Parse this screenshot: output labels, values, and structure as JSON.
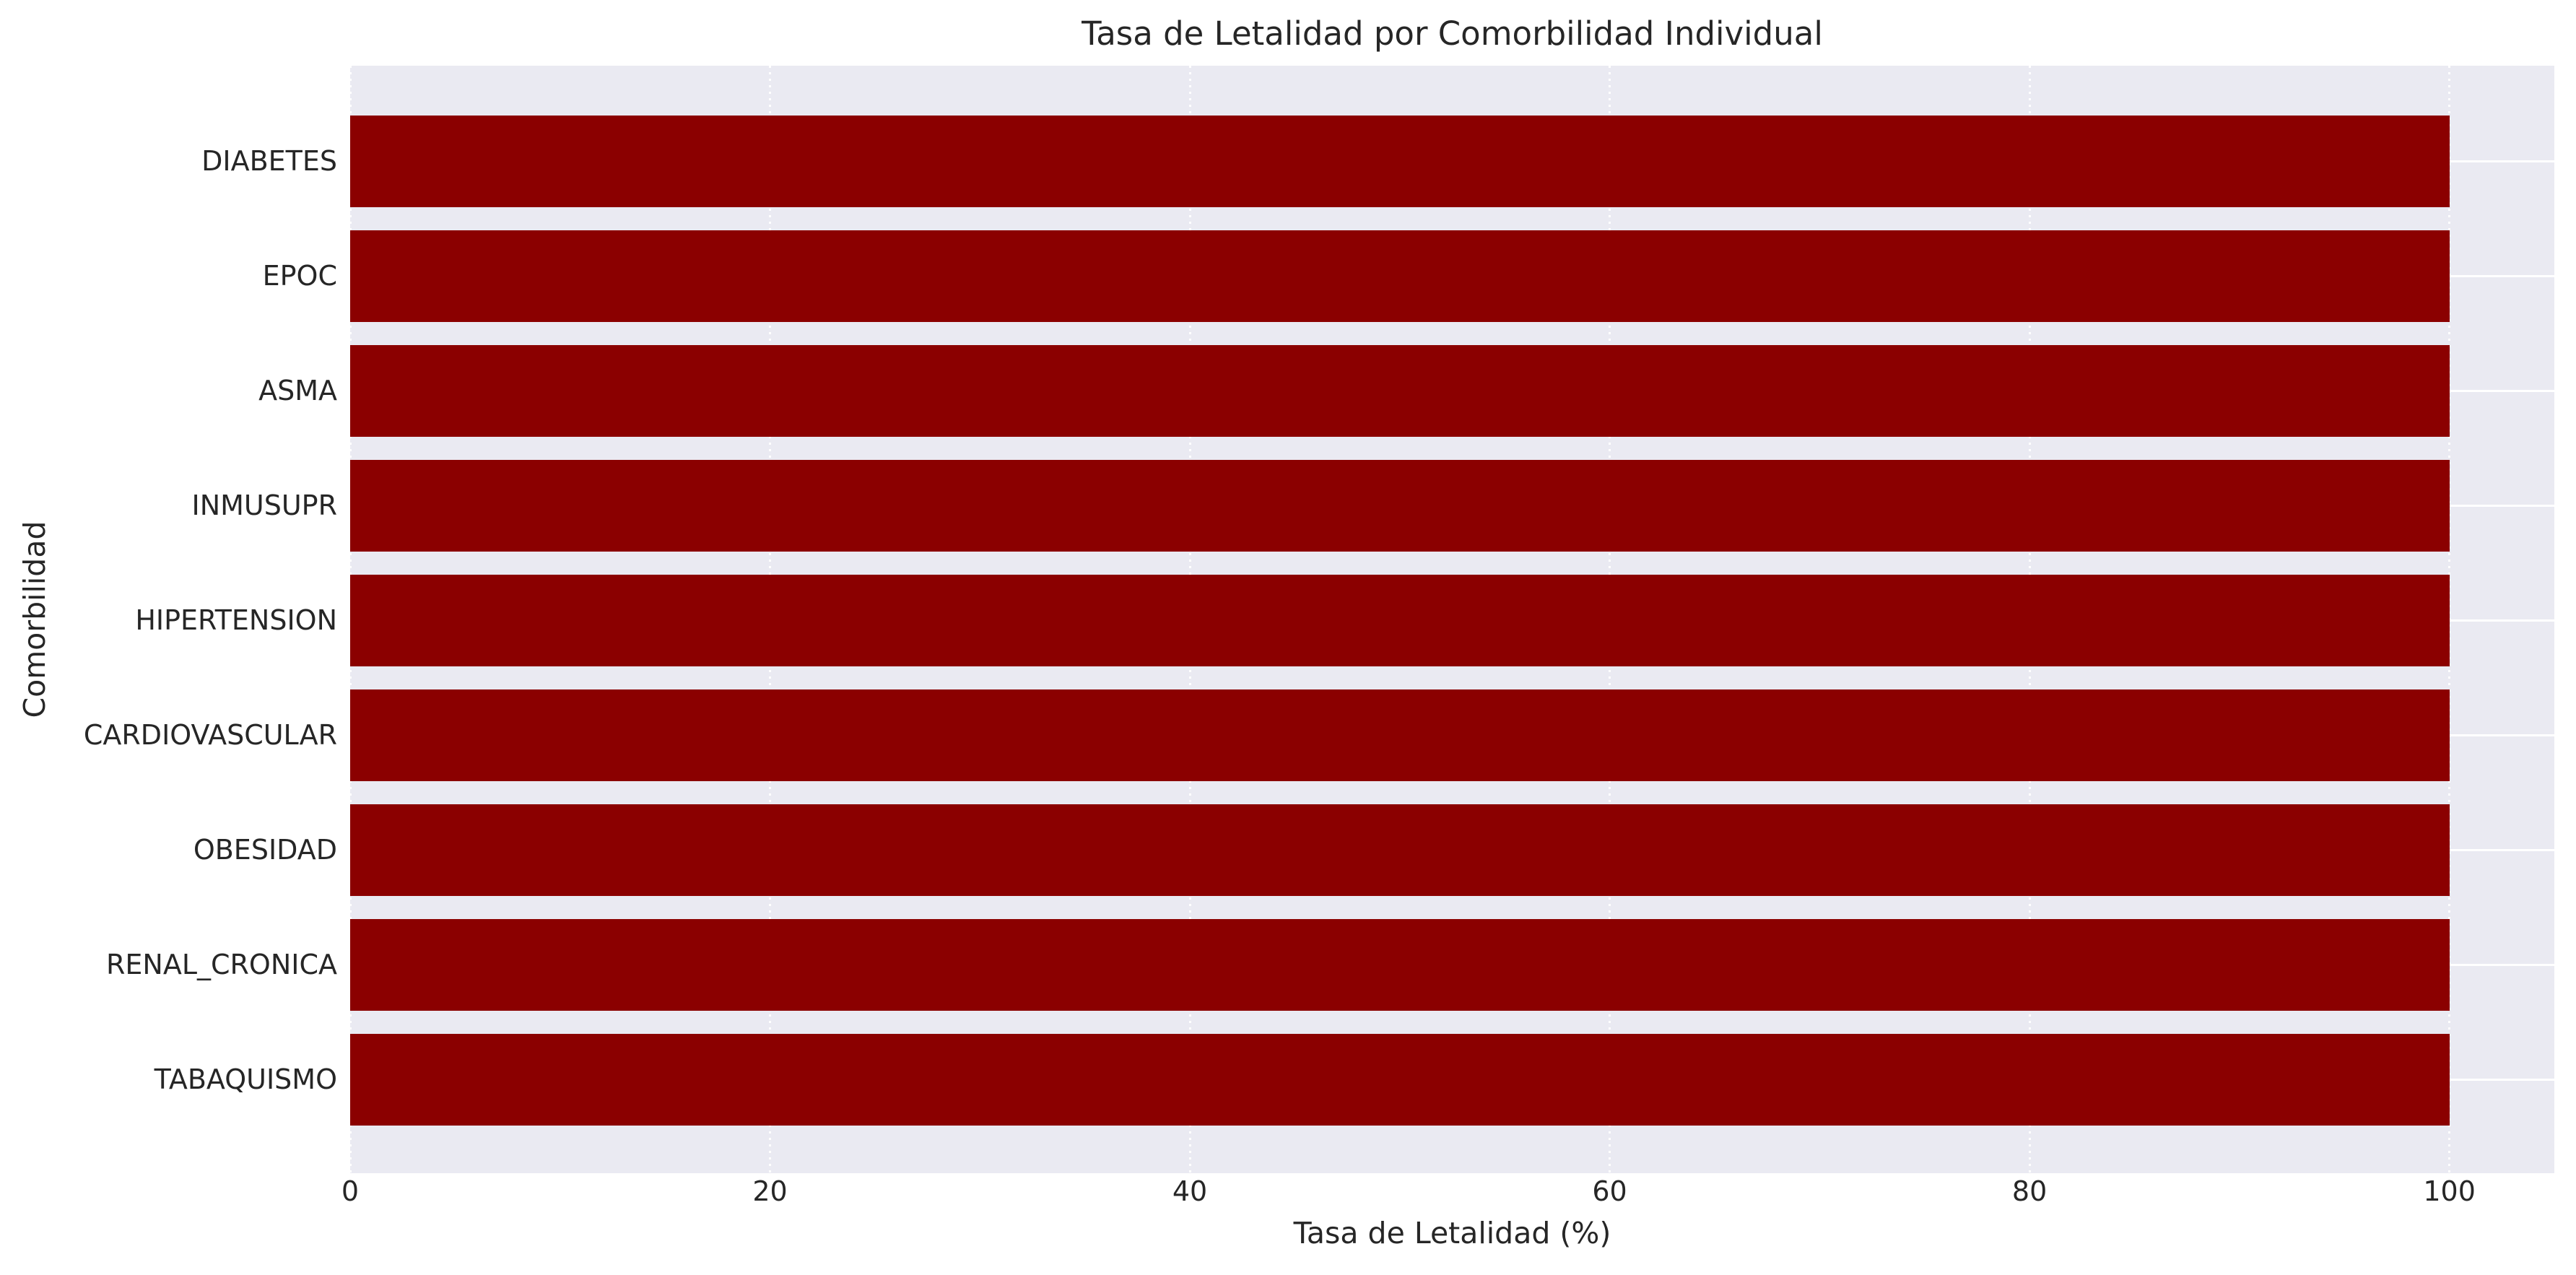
{
  "chart_data": {
    "type": "bar",
    "orientation": "horizontal",
    "title": "Tasa de Letalidad por Comorbilidad Individual",
    "xlabel": "Tasa de Letalidad (%)",
    "ylabel": "Comorbilidad",
    "categories": [
      "DIABETES",
      "EPOC",
      "ASMA",
      "INMUSUPR",
      "HIPERTENSION",
      "CARDIOVASCULAR",
      "OBESIDAD",
      "RENAL_CRONICA",
      "TABAQUISMO"
    ],
    "values": [
      100,
      100,
      100,
      100,
      100,
      100,
      100,
      100,
      100
    ],
    "xticks": [
      0,
      20,
      40,
      60,
      80,
      100
    ],
    "xlim": [
      0,
      105
    ],
    "grid": true,
    "legend": false,
    "colors": {
      "bar": "#8B0000",
      "plot_background": "#EAEAF2",
      "figure_background": "#FFFFFF",
      "gridline": "#FFFFFF",
      "text": "#262626"
    }
  }
}
